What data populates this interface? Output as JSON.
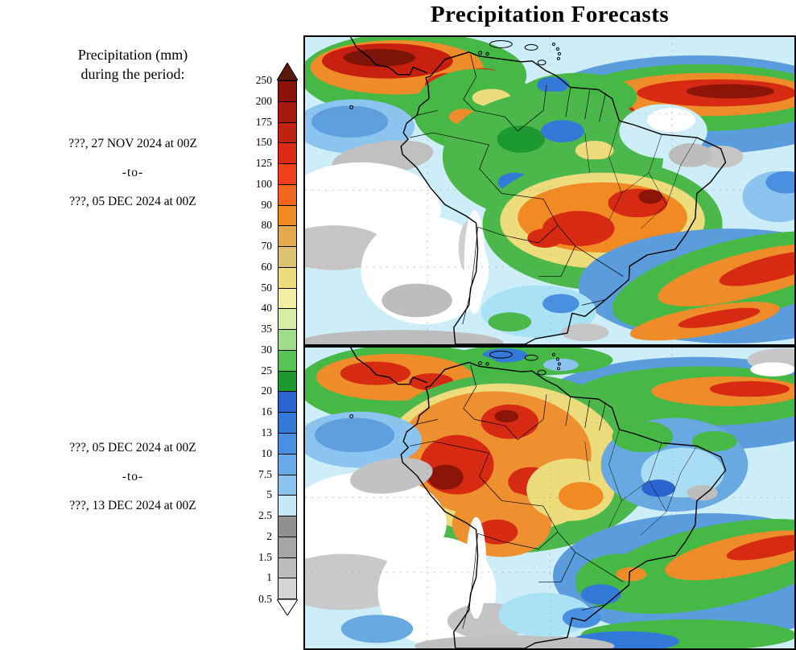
{
  "title": "Precipitation Forecasts",
  "legend": {
    "header_line1": "Precipitation (mm)",
    "header_line2": "during the period:"
  },
  "periods": [
    {
      "start": "???, 27 NOV 2024 at 00Z",
      "separator": "-to-",
      "end": "???, 05 DEC 2024 at 00Z"
    },
    {
      "start": "???, 05 DEC 2024 at 00Z",
      "separator": "-to-",
      "end": "???, 13 DEC 2024 at 00Z"
    }
  ],
  "colorbar": {
    "labels": [
      "250",
      "200",
      "175",
      "150",
      "125",
      "100",
      "90",
      "80",
      "70",
      "60",
      "50",
      "40",
      "35",
      "30",
      "25",
      "20",
      "16",
      "13",
      "10",
      "7.5",
      "5",
      "2.5",
      "2",
      "1.5",
      "1",
      "0.5"
    ],
    "colors": [
      "#8b1309",
      "#a51a0c",
      "#c12110",
      "#dd2a14",
      "#ee4119",
      "#f2651c",
      "#f28a24",
      "#e3a94f",
      "#ddc371",
      "#ecdc7c",
      "#f4eea4",
      "#d5eda6",
      "#9fdd8a",
      "#57c457",
      "#1d9a2f",
      "#2b63cf",
      "#3379d8",
      "#4a90e0",
      "#68a9e8",
      "#8cc4f0",
      "#c6e9f8",
      "#909090",
      "#a5a5a5",
      "#bcbcbc",
      "#d4d4d4"
    ],
    "over_color": "#5c1a0e",
    "under_color": "#ffffff"
  }
}
